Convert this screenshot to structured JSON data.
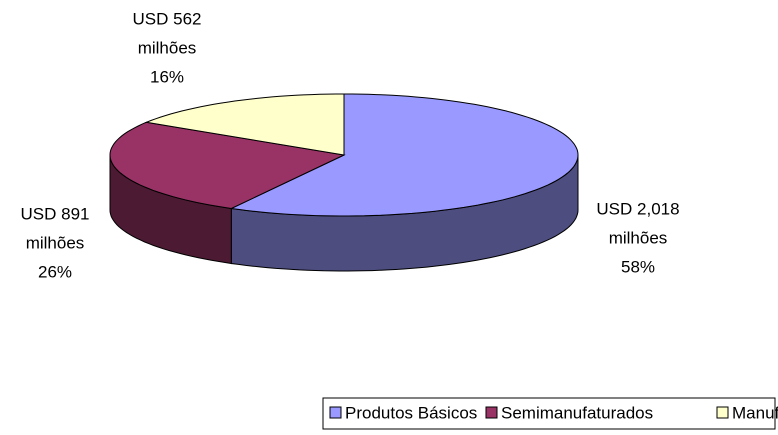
{
  "chart_data": {
    "type": "pie3d",
    "categories": [
      "Produtos Básicos",
      "Semimanufaturados",
      "Manufaturados"
    ],
    "values": [
      58,
      26,
      16
    ],
    "value_labels": [
      "58%",
      "26%",
      "16%"
    ],
    "amounts": [
      2018,
      891,
      562
    ],
    "amount_labels": [
      "USD 2,018",
      "USD 891",
      "USD 562"
    ],
    "unit": "milhões",
    "colors": [
      "#9999ff",
      "#993366",
      "#ffffcc"
    ],
    "legend": "bottom"
  }
}
